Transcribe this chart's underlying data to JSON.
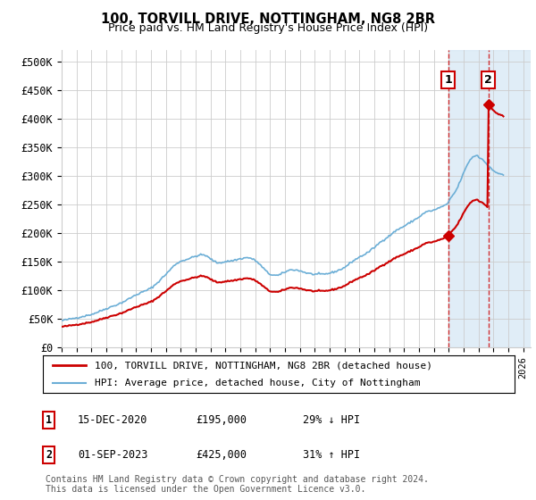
{
  "title": "100, TORVILL DRIVE, NOTTINGHAM, NG8 2BR",
  "subtitle": "Price paid vs. HM Land Registry's House Price Index (HPI)",
  "ytick_labels": [
    "£0",
    "£50K",
    "£100K",
    "£150K",
    "£200K",
    "£250K",
    "£300K",
    "£350K",
    "£400K",
    "£450K",
    "£500K"
  ],
  "yticks": [
    0,
    50000,
    100000,
    150000,
    200000,
    250000,
    300000,
    350000,
    400000,
    450000,
    500000
  ],
  "xmin": 1995.0,
  "xmax": 2026.5,
  "ymin": 0,
  "ymax": 520000,
  "hpi_color": "#6baed6",
  "price_color": "#cc0000",
  "vline_color": "#cc0000",
  "shaded_color": "#d4e6f5",
  "legend_label_price": "100, TORVILL DRIVE, NOTTINGHAM, NG8 2BR (detached house)",
  "legend_label_hpi": "HPI: Average price, detached house, City of Nottingham",
  "annotation1_date": "15-DEC-2020",
  "annotation1_price": "£195,000",
  "annotation1_pct": "29% ↓ HPI",
  "annotation2_date": "01-SEP-2023",
  "annotation2_price": "£425,000",
  "annotation2_pct": "31% ↑ HPI",
  "footnote": "Contains HM Land Registry data © Crown copyright and database right 2024.\nThis data is licensed under the Open Government Licence v3.0.",
  "sale1_x": 2020.96,
  "sale1_y": 195000,
  "sale2_x": 2023.67,
  "sale2_y": 425000,
  "shaded_xmin": 2021.0,
  "shaded_xmax": 2026.5,
  "vline1_x": 2020.96,
  "vline2_x": 2023.67
}
